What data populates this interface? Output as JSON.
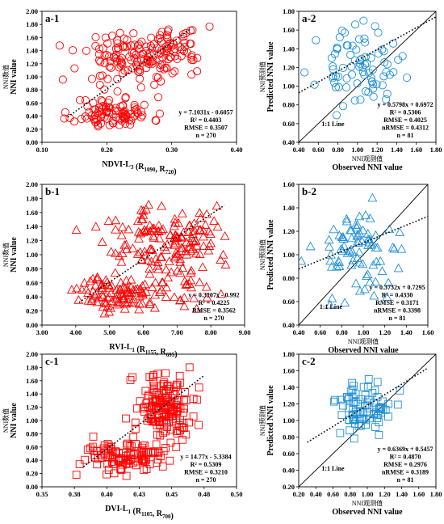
{
  "chart_data": [
    {
      "type": "scatter",
      "panel_label": "a-1",
      "marker": "circle",
      "color": "#ff0000",
      "xlabel_main": "NDVI-L",
      "xlabel_sub": "3",
      "xlabel_rest": " (R",
      "xlabel_b1": "1090",
      "xlabel_mid": ", R",
      "xlabel_b2": "720",
      "xlabel_end": ")",
      "ylabel_cn": "NNI数值",
      "ylabel": "NNI value",
      "xlim": [
        0.1,
        0.4
      ],
      "ylim": [
        0.0,
        2.0
      ],
      "xticks": [
        "0.10",
        "0.20",
        "0.30",
        "0.40"
      ],
      "yticks": [
        "0.00",
        "0.20",
        "0.40",
        "0.60",
        "0.80",
        "1.00",
        "1.20",
        "1.40",
        "1.60",
        "1.80",
        "2.00"
      ],
      "equation": "y = 7.1031x - 0.6057",
      "r2": "R² = 0.4403",
      "rmse": "RMSE = 0.3507",
      "n": "n = 270",
      "fit_slope": 7.1031,
      "fit_intercept": -0.6057,
      "fit_x": [
        0.14,
        0.33
      ],
      "scatter_groups": [
        {
          "cx": 0.21,
          "cy": 0.45,
          "sx": 0.03,
          "sy": 0.12,
          "count": 100
        },
        {
          "cx": 0.24,
          "cy": 1.3,
          "sx": 0.04,
          "sy": 0.2,
          "count": 120
        },
        {
          "cx": 0.3,
          "cy": 1.45,
          "sx": 0.025,
          "sy": 0.18,
          "count": 50
        }
      ],
      "seed": 11
    },
    {
      "type": "scatter",
      "panel_label": "a-2",
      "marker": "circle",
      "color": "#1f8fd6",
      "xlabel_cn": "NNI观测值",
      "xlabel": "Observed NNI value",
      "ylabel_cn": "NNI预测值",
      "ylabel": "Predicted NNI value",
      "xlim": [
        0.4,
        1.8
      ],
      "ylim": [
        0.4,
        1.8
      ],
      "xticks": [
        "0.40",
        "0.60",
        "0.80",
        "1.00",
        "1.20",
        "1.40",
        "1.60",
        "1.80"
      ],
      "yticks": [
        "0.40",
        "0.60",
        "0.80",
        "1.00",
        "1.20",
        "1.40",
        "1.60",
        "1.80"
      ],
      "equation": "y = 0.5798x + 0.6972",
      "r2": "R² = 0.5306",
      "rmse": "RMSE = 0.4025",
      "nrmse": "nRMSE = 0.4312",
      "n": "n = 81",
      "line_label": "1:1 Line",
      "fit_slope": 0.5798,
      "fit_intercept": 0.6972,
      "fit_x": [
        0.4,
        1.8
      ],
      "scatter_groups": [
        {
          "cx": 1.0,
          "cy": 1.2,
          "sx": 0.2,
          "sy": 0.2,
          "count": 81
        }
      ],
      "seed": 23
    },
    {
      "type": "scatter",
      "panel_label": "b-1",
      "marker": "triangle",
      "color": "#ff0000",
      "xlabel_main": "RVI-L",
      "xlabel_sub": "1",
      "xlabel_rest": " (R",
      "xlabel_b1": "1155",
      "xlabel_mid": ", R",
      "xlabel_b2": "695",
      "xlabel_end": ")",
      "ylabel_cn": "NNI数值",
      "ylabel": "NNI value",
      "xlim": [
        3.0,
        9.0
      ],
      "ylim": [
        0.0,
        2.0
      ],
      "xticks": [
        "3.00",
        "4.00",
        "5.00",
        "6.00",
        "7.00",
        "8.00",
        "9.00"
      ],
      "yticks": [
        "0.00",
        "0.20",
        "0.40",
        "0.60",
        "0.80",
        "1.00",
        "1.20",
        "1.40",
        "1.60",
        "1.80",
        "2.00"
      ],
      "equation": "y = 0.3207x - 0.992",
      "r2": "R² = 0.4225",
      "rmse": "RMSE = 0.3562",
      "n": "n = 270",
      "fit_slope": 0.3207,
      "fit_intercept": -0.992,
      "fit_x": [
        4.1,
        8.4
      ],
      "scatter_groups": [
        {
          "cx": 5.3,
          "cy": 0.45,
          "sx": 0.6,
          "sy": 0.12,
          "count": 100
        },
        {
          "cx": 6.5,
          "cy": 1.25,
          "sx": 0.8,
          "sy": 0.25,
          "count": 130
        },
        {
          "cx": 7.3,
          "cy": 0.8,
          "sx": 0.5,
          "sy": 0.25,
          "count": 40
        }
      ],
      "seed": 37
    },
    {
      "type": "scatter",
      "panel_label": "b-2",
      "marker": "triangle",
      "color": "#1f8fd6",
      "xlabel_cn": "NNI观测值",
      "xlabel": "Observed NNI value",
      "ylabel_cn": "NNI预测值",
      "ylabel": "Predicted NNI value",
      "xlim": [
        0.4,
        1.6
      ],
      "ylim": [
        0.4,
        1.6
      ],
      "xticks": [
        "0.40",
        "0.60",
        "0.80",
        "1.00",
        "1.20",
        "1.40",
        "1.60"
      ],
      "yticks": [
        "0.40",
        "0.60",
        "0.80",
        "1.00",
        "1.20",
        "1.40",
        "1.60"
      ],
      "equation": "y = 0.3732x + 0.7295",
      "r2": "R² = 0.4330",
      "rmse": "RMSE = 0.3171",
      "nrmse": "nRMSE = 0.3398",
      "n": "n = 81",
      "line_label": "1:1 Line",
      "fit_slope": 0.3732,
      "fit_intercept": 0.7295,
      "fit_x": [
        0.4,
        1.6
      ],
      "scatter_groups": [
        {
          "cx": 0.95,
          "cy": 1.05,
          "sx": 0.2,
          "sy": 0.2,
          "count": 81
        }
      ],
      "seed": 53
    },
    {
      "type": "scatter",
      "panel_label": "c-1",
      "marker": "square",
      "color": "#ff0000",
      "xlabel_main": "DVI-L",
      "xlabel_sub": "1",
      "xlabel_rest": " (R",
      "xlabel_b1": "1105",
      "xlabel_mid": ", R",
      "xlabel_b2": "700",
      "xlabel_end": ")",
      "ylabel_cn": "NNI数值",
      "ylabel": "NNI value",
      "xlim": [
        0.35,
        0.5
      ],
      "ylim": [
        0.0,
        2.0
      ],
      "xticks": [
        "0.35",
        "0.38",
        "0.40",
        "0.43",
        "0.45",
        "0.48",
        "0.50"
      ],
      "yticks": [
        "0.00",
        "0.20",
        "0.40",
        "0.60",
        "0.80",
        "1.00",
        "1.20",
        "1.40",
        "1.60",
        "1.80",
        "2.00"
      ],
      "equation": "y = 14.77x - 5.3384",
      "r2": "R² = 0.5309",
      "rmse": "RMSE = 0.3210",
      "n": "n = 270",
      "fit_slope": 14.77,
      "fit_intercept": -5.3384,
      "fit_x": [
        0.382,
        0.475
      ],
      "scatter_groups": [
        {
          "cx": 0.415,
          "cy": 0.45,
          "sx": 0.018,
          "sy": 0.13,
          "count": 110
        },
        {
          "cx": 0.445,
          "cy": 1.2,
          "sx": 0.012,
          "sy": 0.25,
          "count": 160
        }
      ],
      "seed": 71
    },
    {
      "type": "scatter",
      "panel_label": "c-2",
      "marker": "square",
      "color": "#1f8fd6",
      "xlabel_cn": "NNI观测值",
      "xlabel": "Observed NNI value",
      "ylabel_cn": "NNI预测值",
      "ylabel": "Predicted NNI value",
      "xlim": [
        0.2,
        1.8
      ],
      "ylim": [
        0.2,
        1.8
      ],
      "xticks": [
        "0.20",
        "0.40",
        "0.60",
        "0.80",
        "1.00",
        "1.20",
        "1.40",
        "1.60",
        "1.80"
      ],
      "yticks": [
        "0.20",
        "0.40",
        "0.60",
        "0.80",
        "1.00",
        "1.20",
        "1.40",
        "1.60",
        "1.80"
      ],
      "equation": "y = 0.6369x + 0.5457",
      "r2": "R² = 0.4870",
      "rmse": "RMSE = 0.2976",
      "nrmse": "nRMSE = 0.3189",
      "n": "n = 81",
      "line_label": "1:1 Line",
      "fit_slope": 0.6369,
      "fit_intercept": 0.5457,
      "fit_x": [
        0.3,
        1.7
      ],
      "scatter_groups": [
        {
          "cx": 1.0,
          "cy": 1.15,
          "sx": 0.18,
          "sy": 0.18,
          "count": 81
        }
      ],
      "seed": 89
    }
  ]
}
